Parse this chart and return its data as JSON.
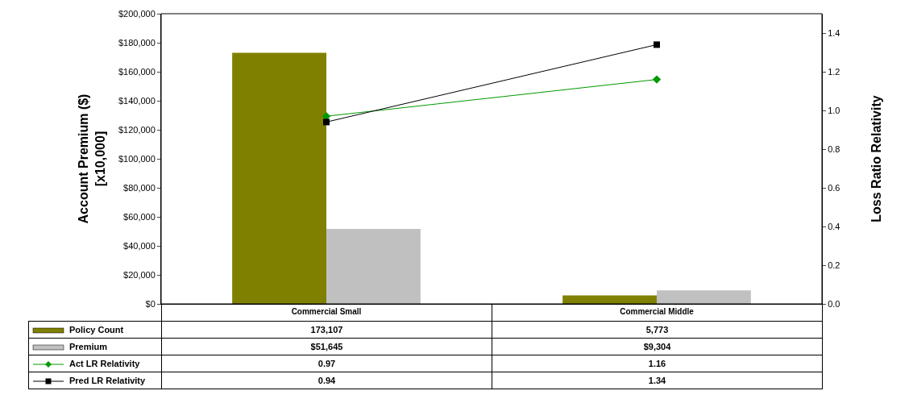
{
  "chart_data": {
    "type": "bar",
    "categories": [
      "Commercial Small",
      "Commercial Middle"
    ],
    "ylabel": "Account Premium ($)\n[x10,000]",
    "y2label": "Loss Ratio Relativity",
    "ylim": [
      0,
      200000
    ],
    "yticks": [
      {
        "value": 0,
        "label": "$0"
      },
      {
        "value": 20000,
        "label": "$20,000"
      },
      {
        "value": 40000,
        "label": "$40,000"
      },
      {
        "value": 60000,
        "label": "$60,000"
      },
      {
        "value": 80000,
        "label": "$80,000"
      },
      {
        "value": 100000,
        "label": "$100,000"
      },
      {
        "value": 120000,
        "label": "$120,000"
      },
      {
        "value": 140000,
        "label": "$140,000"
      },
      {
        "value": 160000,
        "label": "$160,000"
      },
      {
        "value": 180000,
        "label": "$180,000"
      },
      {
        "value": 200000,
        "label": "$200,000"
      }
    ],
    "y2lim": [
      0,
      1.5
    ],
    "y2ticks": [
      {
        "value": 0,
        "label": "0.0"
      },
      {
        "value": 0.2,
        "label": "0.2"
      },
      {
        "value": 0.4,
        "label": "0.4"
      },
      {
        "value": 0.6,
        "label": "0.6"
      },
      {
        "value": 0.8,
        "label": "0.8"
      },
      {
        "value": 1,
        "label": "1.0"
      },
      {
        "value": 1.2,
        "label": "1.2"
      },
      {
        "value": 1.4,
        "label": "1.4"
      }
    ],
    "grid": false,
    "legend": "bottom left",
    "series": [
      {
        "name": "Policy Count",
        "color": "#808000",
        "values": [
          173107,
          5773
        ],
        "value_labels": [
          "173,107",
          "5,773"
        ]
      },
      {
        "name": "Premium",
        "color": "#c0c0c0",
        "values": [
          51645,
          9304
        ],
        "value_labels": [
          "$51,645",
          "$9,304"
        ]
      },
      {
        "name": "Act LR Relativity",
        "type": "line",
        "axis": "y2",
        "color": "#009900",
        "marker": "diamond",
        "line_style": "solid",
        "values": [
          0.97,
          1.16
        ],
        "value_labels": [
          "0.97",
          "1.16"
        ]
      },
      {
        "name": "Pred LR Relativity",
        "type": "line",
        "axis": "y2",
        "color": "#000000",
        "marker": "square",
        "line_style": "solid",
        "values": [
          0.94,
          1.34
        ],
        "value_labels": [
          "0.94",
          "1.34"
        ]
      }
    ]
  }
}
